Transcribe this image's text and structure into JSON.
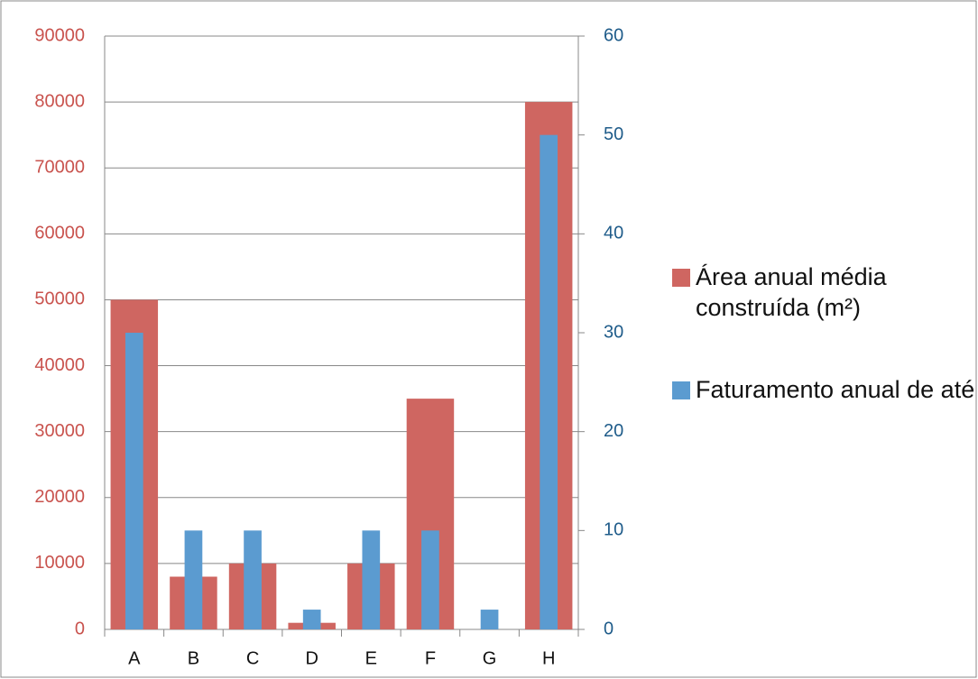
{
  "chart_data": {
    "type": "bar",
    "categories": [
      "A",
      "B",
      "C",
      "D",
      "E",
      "F",
      "G",
      "H"
    ],
    "series": [
      {
        "name": "Área anual média construída (m²)",
        "color": "#cf6661",
        "values": [
          50000,
          8000,
          10000,
          1000,
          10000,
          35000,
          0,
          80000
        ]
      },
      {
        "name": "Faturamento anual de até",
        "color": "#5b9bd0",
        "axis": "y2",
        "values": [
          30,
          10,
          10,
          2,
          10,
          10,
          2,
          50
        ]
      }
    ],
    "ylim": [
      0,
      90000
    ],
    "yticks": [
      0,
      10000,
      20000,
      30000,
      40000,
      50000,
      60000,
      70000,
      80000,
      90000
    ],
    "y2lim": [
      0,
      60
    ],
    "y2ticks": [
      0,
      10,
      20,
      30,
      40,
      50,
      60
    ],
    "grid": true,
    "legend": "right"
  }
}
